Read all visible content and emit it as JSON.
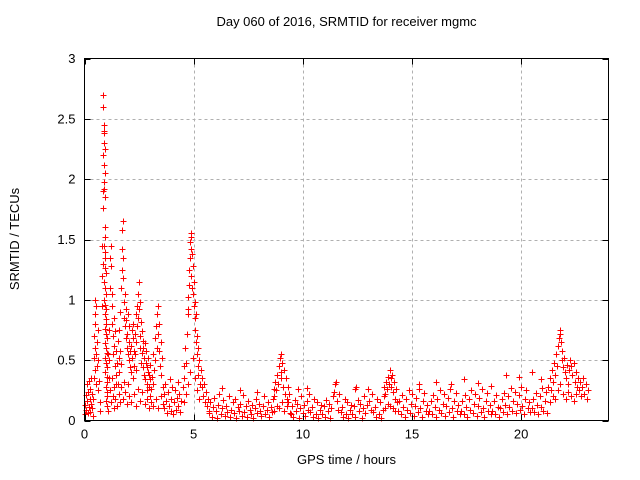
{
  "title": "Day 060 of 2016, SRMTID for receiver mgmc",
  "chart_data": {
    "type": "scatter",
    "title": "Day 060 of 2016, SRMTID for receiver mgmc",
    "xlabel": "GPS time / hours",
    "ylabel": "SRMTID / TECUs",
    "xlim": [
      0,
      24
    ],
    "ylim": [
      0,
      3
    ],
    "xticks": [
      0,
      5,
      10,
      15,
      20
    ],
    "xtick_labels": [
      "0",
      "5",
      "10",
      "15",
      "20"
    ],
    "yticks": [
      0,
      0.5,
      1,
      1.5,
      2,
      2.5,
      3
    ],
    "ytick_labels": [
      "0",
      "0.5",
      "1",
      "1.5",
      "2",
      "2.5",
      "3"
    ],
    "grid": true,
    "legend": false,
    "marker": "plus",
    "marker_size": 7,
    "colors": {
      "points": "#ff0000",
      "grid": "#b0b0b0",
      "frame": "#000000",
      "text": "#000000",
      "background": "#ffffff"
    },
    "series_name": "SRMTID",
    "xy": [
      0.02,
      0.13,
      0.04,
      0.05,
      0.06,
      0.21,
      0.08,
      0.09,
      0.1,
      0.3,
      0.12,
      0.16,
      0.14,
      0.06,
      0.17,
      0.24,
      0.19,
      0.11,
      0.21,
      0.33,
      0.23,
      0.18,
      0.25,
      0.07,
      0.27,
      0.26,
      0.29,
      0.14,
      0.31,
      0.35,
      0.33,
      0.22,
      0.35,
      0.1,
      0.37,
      0.04,
      0.4,
      0.18,
      0.42,
      0.35,
      0.44,
      0.52,
      0.45,
      0.7,
      0.46,
      0.88,
      0.47,
      1.0,
      0.48,
      0.6,
      0.5,
      0.42,
      0.5,
      0.8,
      0.51,
      0.95,
      0.52,
      0.55,
      0.54,
      0.3,
      0.56,
      0.65,
      0.58,
      0.45,
      0.6,
      0.25,
      0.62,
      0.75,
      0.64,
      0.5,
      0.66,
      0.33,
      0.7,
      0.15,
      0.73,
      0.08,
      0.78,
      0.95,
      0.8,
      1.2,
      0.82,
      1.45,
      0.83,
      1.9,
      0.84,
      2.2,
      0.85,
      2.7,
      0.87,
      2.6,
      0.88,
      2.45,
      0.9,
      2.4,
      0.91,
      2.38,
      0.89,
      2.3,
      0.92,
      2.25,
      0.9,
      2.12,
      0.93,
      2.05,
      0.88,
      1.98,
      0.91,
      1.92,
      0.94,
      1.85,
      0.86,
      1.76,
      0.92,
      1.6,
      0.95,
      1.52,
      0.89,
      1.45,
      0.93,
      1.4,
      0.96,
      1.35,
      0.87,
      1.3,
      0.94,
      1.26,
      0.97,
      1.22,
      0.9,
      1.15,
      0.95,
      1.1,
      0.98,
      1.05,
      0.91,
      1.0,
      0.96,
      0.96,
      0.99,
      0.92,
      0.92,
      0.88,
      0.97,
      0.84,
      1.0,
      0.8,
      0.93,
      0.76,
      0.98,
      0.72,
      1.01,
      0.68,
      0.94,
      0.64,
      0.99,
      0.6,
      1.02,
      0.56,
      0.95,
      0.52,
      1.0,
      0.48,
      1.03,
      0.44,
      0.96,
      0.4,
      1.01,
      0.36,
      1.04,
      0.32,
      0.97,
      0.28,
      1.02,
      0.24,
      1.05,
      0.2,
      0.98,
      0.16,
      1.03,
      0.12,
      1.06,
      0.08,
      1.08,
      0.55,
      1.1,
      0.35,
      1.12,
      0.75,
      1.14,
      0.5,
      1.16,
      1.1,
      1.18,
      1.35,
      1.2,
      1.45,
      1.22,
      1.28,
      1.24,
      0.95,
      1.26,
      0.8,
      1.28,
      1.05,
      1.3,
      0.7,
      1.32,
      0.55,
      1.34,
      0.85,
      1.36,
      0.62,
      1.38,
      0.45,
      1.4,
      0.74,
      1.42,
      0.38,
      1.44,
      0.58,
      1.45,
      0.3,
      1.17,
      0.25,
      1.21,
      0.15,
      1.25,
      0.35,
      1.29,
      0.2,
      1.33,
      0.1,
      1.37,
      0.28,
      1.41,
      0.18,
      1.5,
      0.48,
      1.52,
      0.3,
      1.54,
      0.66,
      1.56,
      0.52,
      1.58,
      0.4,
      1.6,
      0.75,
      1.62,
      0.58,
      1.64,
      0.9,
      1.66,
      0.47,
      1.68,
      1.1,
      1.7,
      1.25,
      1.72,
      1.42,
      1.74,
      1.58,
      1.75,
      1.65,
      1.76,
      1.35,
      1.78,
      1.18,
      1.8,
      0.98,
      1.82,
      0.85,
      1.84,
      1.05,
      1.86,
      0.78,
      1.88,
      0.92,
      1.9,
      0.68,
      1.92,
      0.83,
      1.94,
      0.6,
      1.96,
      0.72,
      1.98,
      0.55,
      2.0,
      0.88,
      2.02,
      0.65,
      2.04,
      0.5,
      2.06,
      0.78,
      2.08,
      0.58,
      2.1,
      0.44,
      1.51,
      0.12,
      1.57,
      0.22,
      1.63,
      0.15,
      1.69,
      0.28,
      1.75,
      0.18,
      1.81,
      0.32,
      1.87,
      0.24,
      1.93,
      0.14,
      1.99,
      0.3,
      2.05,
      0.2,
      2.12,
      0.62,
      2.14,
      0.4,
      2.16,
      0.75,
      2.18,
      0.52,
      2.2,
      0.68,
      2.22,
      0.35,
      2.24,
      0.8,
      2.26,
      0.58,
      2.28,
      0.45,
      2.3,
      0.72,
      2.32,
      0.55,
      2.34,
      0.88,
      2.36,
      0.42,
      2.38,
      0.65,
      2.4,
      0.95,
      2.42,
      0.78,
      2.44,
      1.05,
      2.46,
      0.85,
      2.48,
      1.15,
      2.5,
      0.92,
      2.52,
      0.7,
      2.54,
      0.98,
      2.56,
      0.6,
      2.58,
      0.82,
      2.6,
      0.48,
      2.62,
      0.74,
      2.64,
      0.56,
      2.66,
      0.66,
      2.68,
      0.44,
      2.7,
      0.6,
      2.72,
      0.38,
      2.74,
      0.52,
      2.76,
      0.64,
      2.78,
      0.34,
      2.8,
      0.48,
      2.82,
      0.58,
      2.84,
      0.3,
      2.86,
      0.44,
      2.88,
      0.25,
      2.9,
      0.4,
      2.92,
      0.52,
      2.94,
      0.28,
      2.96,
      0.38,
      2.98,
      0.2,
      3.0,
      0.34,
      3.02,
      0.46,
      3.05,
      0.26,
      3.08,
      0.36,
      2.15,
      0.15,
      2.25,
      0.22,
      2.35,
      0.12,
      2.45,
      0.26,
      2.55,
      0.16,
      2.65,
      0.24,
      2.75,
      0.14,
      2.85,
      0.18,
      2.95,
      0.1,
      3.05,
      0.15,
      3.12,
      0.3,
      3.15,
      0.55,
      3.18,
      0.42,
      3.21,
      0.68,
      3.24,
      0.5,
      3.27,
      0.78,
      3.3,
      0.6,
      3.33,
      0.88,
      3.36,
      0.95,
      3.38,
      0.72,
      3.4,
      0.58,
      3.43,
      0.8,
      3.46,
      0.45,
      3.49,
      0.65,
      3.52,
      0.38,
      3.55,
      0.52,
      3.58,
      0.28,
      3.14,
      0.12,
      3.26,
      0.18,
      3.38,
      0.1,
      3.5,
      0.2,
      3.6,
      0.14,
      3.62,
      0.22,
      3.66,
      0.1,
      3.7,
      0.3,
      3.74,
      0.16,
      3.78,
      0.06,
      3.82,
      0.24,
      3.86,
      0.12,
      3.9,
      0.34,
      3.94,
      0.08,
      3.98,
      0.18,
      4.02,
      0.28,
      4.06,
      0.05,
      4.1,
      0.15,
      4.14,
      0.25,
      4.18,
      0.09,
      4.22,
      0.19,
      4.26,
      0.32,
      4.3,
      0.12,
      4.34,
      0.22,
      4.38,
      0.07,
      4.42,
      0.16,
      4.5,
      0.28,
      4.54,
      0.45,
      4.58,
      0.35,
      4.62,
      0.6,
      4.66,
      0.48,
      4.7,
      0.72,
      4.72,
      0.88,
      4.74,
      1.02,
      4.76,
      0.92,
      4.78,
      1.12,
      4.8,
      1.25,
      4.82,
      1.35,
      4.84,
      1.48,
      4.86,
      1.42,
      4.88,
      1.55,
      4.9,
      1.52,
      4.9,
      1.2,
      4.92,
      1.38,
      4.94,
      1.1,
      4.96,
      1.28,
      4.98,
      1.05,
      5.0,
      0.95,
      5.02,
      1.15,
      5.04,
      0.85,
      5.06,
      0.98,
      5.08,
      0.75,
      5.1,
      0.88,
      5.12,
      0.65,
      5.14,
      0.55,
      5.16,
      0.7,
      5.18,
      0.45,
      5.2,
      0.6,
      5.22,
      0.38,
      5.25,
      0.5,
      5.28,
      0.3,
      4.55,
      0.15,
      4.65,
      0.22,
      4.75,
      0.3,
      4.85,
      0.4,
      4.95,
      0.52,
      5.05,
      0.35,
      5.15,
      0.25,
      5.26,
      0.18,
      5.32,
      0.42,
      5.36,
      0.28,
      5.4,
      0.35,
      5.44,
      0.2,
      5.48,
      0.3,
      5.52,
      0.15,
      5.56,
      0.24,
      5.6,
      0.12,
      5.64,
      0.18,
      5.68,
      0.08,
      5.7,
      0.06,
      5.76,
      0.15,
      5.82,
      0.03,
      5.88,
      0.11,
      5.94,
      0.19,
      6.0,
      0.08,
      6.06,
      0.02,
      6.12,
      0.13,
      6.18,
      0.22,
      6.24,
      0.05,
      6.3,
      0.1,
      6.36,
      0.17,
      6.42,
      0.04,
      6.48,
      0.12,
      6.54,
      0.07,
      6.6,
      0.2,
      6.66,
      0.03,
      6.72,
      0.09,
      6.78,
      0.15,
      6.84,
      0.06,
      6.9,
      0.18,
      6.96,
      0.02,
      7.02,
      0.11,
      7.08,
      0.08,
      7.14,
      0.14,
      7.2,
      0.04,
      7.26,
      0.21,
      7.32,
      0.07,
      7.38,
      0.12,
      7.44,
      0.03,
      7.5,
      0.16,
      7.56,
      0.09,
      7.62,
      0.05,
      7.68,
      0.13,
      7.74,
      0.02,
      7.8,
      0.1,
      7.86,
      0.18,
      7.92,
      0.06,
      7.98,
      0.14,
      8.04,
      0.08,
      8.1,
      0.04,
      8.16,
      0.12,
      8.22,
      0.2,
      8.28,
      0.05,
      8.34,
      0.09,
      8.4,
      0.15,
      8.46,
      0.03,
      8.52,
      0.11,
      8.58,
      0.07,
      8.62,
      0.18,
      8.66,
      0.26,
      8.7,
      0.2,
      8.74,
      0.32,
      8.78,
      0.25,
      8.82,
      0.38,
      8.86,
      0.3,
      8.9,
      0.45,
      8.94,
      0.52,
      8.98,
      0.4,
      9.0,
      0.55,
      9.02,
      0.35,
      9.06,
      0.48,
      9.1,
      0.28,
      9.14,
      0.42,
      9.18,
      0.22,
      9.22,
      0.35,
      9.26,
      0.18,
      9.3,
      0.28,
      9.34,
      0.15,
      9.38,
      0.22,
      8.68,
      0.08,
      8.8,
      0.12,
      8.92,
      0.1,
      9.04,
      0.15,
      9.16,
      0.08,
      9.28,
      0.12,
      9.4,
      0.06,
      9.45,
      0.05,
      9.51,
      0.12,
      9.57,
      0.03,
      9.63,
      0.17,
      9.69,
      0.08,
      9.75,
      0.14,
      9.81,
      0.02,
      9.87,
      0.1,
      9.93,
      0.2,
      9.99,
      0.06,
      10.05,
      0.13,
      10.11,
      0.04,
      10.17,
      0.16,
      10.23,
      0.09,
      10.29,
      0.22,
      10.35,
      0.07,
      10.41,
      0.11,
      10.47,
      0.03,
      10.53,
      0.18,
      10.59,
      0.05,
      10.65,
      0.15,
      10.71,
      0.02,
      10.77,
      0.09,
      10.83,
      0.13,
      10.89,
      0.05,
      10.95,
      0.12,
      11.01,
      0.03,
      11.07,
      0.17,
      11.13,
      0.08,
      11.19,
      0.14,
      11.25,
      0.02,
      11.31,
      0.1,
      11.37,
      0.2,
      11.43,
      0.24,
      11.49,
      0.3,
      11.55,
      0.16,
      11.61,
      0.09,
      11.67,
      0.22,
      11.73,
      0.07,
      11.79,
      0.11,
      11.85,
      0.03,
      11.91,
      0.18,
      11.97,
      0.05,
      12.03,
      0.15,
      12.09,
      0.02,
      12.15,
      0.09,
      12.21,
      0.13,
      12.27,
      0.05,
      12.33,
      0.12,
      12.39,
      0.03,
      12.45,
      0.28,
      12.51,
      0.17,
      12.57,
      0.08,
      12.63,
      0.14,
      12.69,
      0.02,
      12.75,
      0.1,
      12.81,
      0.2,
      12.87,
      0.06,
      12.93,
      0.13,
      12.99,
      0.26,
      13.05,
      0.16,
      13.11,
      0.09,
      13.17,
      0.22,
      13.23,
      0.07,
      13.29,
      0.11,
      13.35,
      0.03,
      13.41,
      0.18,
      13.47,
      0.05,
      13.53,
      0.15,
      13.59,
      0.02,
      13.65,
      0.09,
      13.7,
      0.2,
      13.74,
      0.28,
      13.78,
      0.22,
      13.82,
      0.32,
      13.86,
      0.26,
      13.9,
      0.36,
      13.94,
      0.3,
      13.98,
      0.42,
      14.02,
      0.35,
      14.06,
      0.28,
      14.1,
      0.38,
      14.14,
      0.24,
      14.18,
      0.32,
      14.22,
      0.18,
      14.26,
      0.26,
      14.3,
      0.15,
      13.76,
      0.1,
      13.88,
      0.14,
      14.0,
      0.12,
      14.12,
      0.1,
      14.24,
      0.08,
      14.36,
      0.08,
      14.42,
      0.16,
      14.48,
      0.05,
      14.54,
      0.21,
      14.6,
      0.11,
      14.66,
      0.03,
      14.72,
      0.18,
      14.78,
      0.09,
      14.84,
      0.25,
      14.9,
      0.06,
      14.96,
      0.14,
      15.02,
      0.22,
      15.08,
      0.04,
      15.14,
      0.12,
      15.2,
      0.19,
      15.26,
      0.07,
      15.32,
      0.26,
      15.38,
      0.1,
      15.44,
      0.03,
      15.5,
      0.16,
      15.56,
      0.23,
      15.62,
      0.08,
      15.68,
      0.13,
      15.74,
      0.05,
      15.8,
      0.08,
      15.86,
      0.16,
      15.92,
      0.05,
      15.98,
      0.21,
      16.04,
      0.11,
      16.1,
      0.03,
      16.16,
      0.18,
      16.22,
      0.09,
      16.28,
      0.25,
      16.34,
      0.06,
      16.4,
      0.14,
      16.46,
      0.22,
      16.52,
      0.04,
      16.58,
      0.12,
      16.64,
      0.19,
      16.7,
      0.07,
      16.76,
      0.26,
      16.82,
      0.1,
      16.88,
      0.03,
      16.94,
      0.16,
      17.0,
      0.23,
      17.06,
      0.08,
      17.12,
      0.13,
      17.18,
      0.05,
      17.24,
      0.08,
      17.3,
      0.16,
      17.36,
      0.05,
      17.42,
      0.21,
      17.48,
      0.11,
      17.54,
      0.03,
      17.6,
      0.18,
      17.66,
      0.09,
      17.72,
      0.25,
      17.78,
      0.06,
      17.84,
      0.14,
      17.9,
      0.22,
      17.96,
      0.04,
      18.02,
      0.12,
      18.08,
      0.19,
      18.14,
      0.07,
      18.2,
      0.26,
      18.26,
      0.1,
      18.32,
      0.03,
      18.38,
      0.16,
      18.44,
      0.23,
      18.5,
      0.08,
      18.56,
      0.13,
      18.62,
      0.05,
      18.68,
      0.08,
      18.74,
      0.16,
      18.8,
      0.05,
      18.86,
      0.21,
      18.92,
      0.11,
      18.98,
      0.03,
      19.04,
      0.1,
      19.1,
      0.18,
      19.16,
      0.07,
      19.22,
      0.23,
      19.28,
      0.13,
      19.34,
      0.05,
      19.4,
      0.2,
      19.46,
      0.11,
      19.52,
      0.27,
      19.58,
      0.08,
      19.64,
      0.16,
      19.7,
      0.24,
      19.76,
      0.06,
      19.82,
      0.14,
      19.88,
      0.21,
      19.94,
      0.09,
      20.0,
      0.28,
      20.06,
      0.12,
      20.12,
      0.05,
      20.18,
      0.18,
      20.24,
      0.25,
      20.3,
      0.1,
      20.36,
      0.15,
      20.42,
      0.07,
      20.48,
      0.1,
      20.54,
      0.18,
      20.6,
      0.07,
      20.66,
      0.23,
      20.72,
      0.13,
      20.78,
      0.05,
      20.84,
      0.2,
      20.9,
      0.11,
      20.96,
      0.27,
      21.02,
      0.08,
      21.08,
      0.16,
      21.14,
      0.24,
      21.2,
      0.06,
      6.3,
      0.27,
      7.1,
      0.25,
      7.9,
      0.24,
      9.8,
      0.26,
      10.2,
      0.27,
      11.52,
      0.32,
      12.4,
      0.26,
      15.3,
      0.3,
      16.1,
      0.32,
      16.8,
      0.3,
      17.4,
      0.34,
      18.0,
      0.31,
      18.6,
      0.29,
      19.3,
      0.38,
      19.9,
      0.36,
      20.5,
      0.4,
      20.9,
      0.34,
      21.25,
      0.28,
      21.3,
      0.35,
      21.35,
      0.25,
      21.4,
      0.42,
      21.45,
      0.32,
      21.5,
      0.48,
      21.55,
      0.38,
      21.6,
      0.55,
      21.65,
      0.45,
      21.7,
      0.62,
      21.74,
      0.68,
      21.78,
      0.75,
      21.8,
      0.72,
      21.82,
      0.65,
      21.85,
      0.58,
      21.88,
      0.5,
      21.92,
      0.44,
      21.96,
      0.52,
      22.0,
      0.4,
      22.05,
      0.35,
      22.1,
      0.46,
      22.15,
      0.3,
      22.2,
      0.42,
      22.25,
      0.5,
      22.3,
      0.45,
      22.35,
      0.38,
      22.4,
      0.48,
      22.45,
      0.32,
      22.5,
      0.4,
      22.55,
      0.28,
      21.32,
      0.15,
      21.44,
      0.2,
      21.56,
      0.18,
      21.68,
      0.25,
      21.8,
      0.3,
      21.92,
      0.22,
      22.04,
      0.18,
      22.16,
      0.24,
      22.28,
      0.2,
      22.4,
      0.16,
      22.52,
      0.22,
      22.6,
      0.35,
      22.65,
      0.25,
      22.7,
      0.32,
      22.75,
      0.2,
      22.8,
      0.28,
      22.85,
      0.35,
      22.9,
      0.22,
      22.95,
      0.3,
      23.0,
      0.18,
      23.05,
      0.25
    ]
  }
}
